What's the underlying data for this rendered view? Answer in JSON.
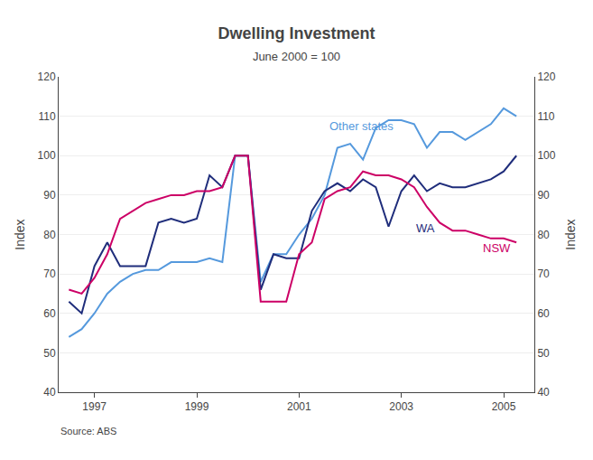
{
  "chart_data": {
    "type": "line",
    "title": "Dwelling Investment",
    "subtitle": "June 2000 = 100",
    "ylabel": "Index",
    "y2label": "Index",
    "source": "Source: ABS",
    "x": [
      1996.5,
      1996.75,
      1997.0,
      1997.25,
      1997.5,
      1997.75,
      1998.0,
      1998.25,
      1998.5,
      1998.75,
      1999.0,
      1999.25,
      1999.5,
      1999.75,
      2000.0,
      2000.25,
      2000.5,
      2000.75,
      2001.0,
      2001.25,
      2001.5,
      2001.75,
      2002.0,
      2002.25,
      2002.5,
      2002.75,
      2003.0,
      2003.25,
      2003.5,
      2003.75,
      2004.0,
      2004.25,
      2004.5,
      2004.75,
      2005.0,
      2005.25
    ],
    "series": [
      {
        "color": "#5599dd",
        "values": [
          54,
          56,
          60,
          65,
          68,
          70,
          71,
          71,
          73,
          73,
          73,
          74,
          73,
          100,
          100,
          68,
          75,
          75,
          80,
          84,
          90,
          102,
          103,
          99,
          107,
          109,
          109,
          108,
          102,
          106,
          106,
          104,
          106,
          108,
          112,
          110
        ]
      },
      {
        "color": "#1f2d7b",
        "values": [
          63,
          60,
          72,
          78,
          72,
          72,
          72,
          83,
          84,
          83,
          84,
          95,
          92,
          100,
          100,
          66,
          75,
          74,
          74,
          86,
          91,
          93,
          91,
          94,
          92,
          82,
          91,
          95,
          91,
          93,
          92,
          92,
          93,
          94,
          96,
          100
        ]
      },
      {
        "color": "#cc0066",
        "values": [
          66,
          65,
          69,
          75,
          84,
          86,
          88,
          89,
          90,
          90,
          91,
          91,
          92,
          100,
          100,
          63,
          63,
          63,
          75,
          78,
          89,
          91,
          92,
          96,
          95,
          95,
          94,
          92,
          87,
          83,
          81,
          81,
          80,
          79,
          79,
          78
        ]
      }
    ],
    "xlim": [
      1996.3,
      2005.6
    ],
    "xticks": [
      1997,
      1999,
      2001,
      2003,
      2005
    ],
    "ylim": [
      40,
      120
    ],
    "yticks": [
      40,
      50,
      60,
      70,
      80,
      90,
      100,
      110,
      120
    ],
    "y2lim": [
      40,
      120
    ],
    "y2ticks": [
      40,
      50,
      60,
      70,
      80,
      90,
      100,
      110,
      120
    ],
    "grid": true,
    "annotations": [
      {
        "x": 2001.55,
        "y": 107.5,
        "text": "Other states",
        "color": "#5599dd"
      },
      {
        "x": 2003.25,
        "y": 81.5,
        "text": "WA",
        "color": "#1f2d7b"
      },
      {
        "x": 2004.55,
        "y": 76.5,
        "text": "NSW",
        "color": "#cc0066"
      }
    ]
  }
}
